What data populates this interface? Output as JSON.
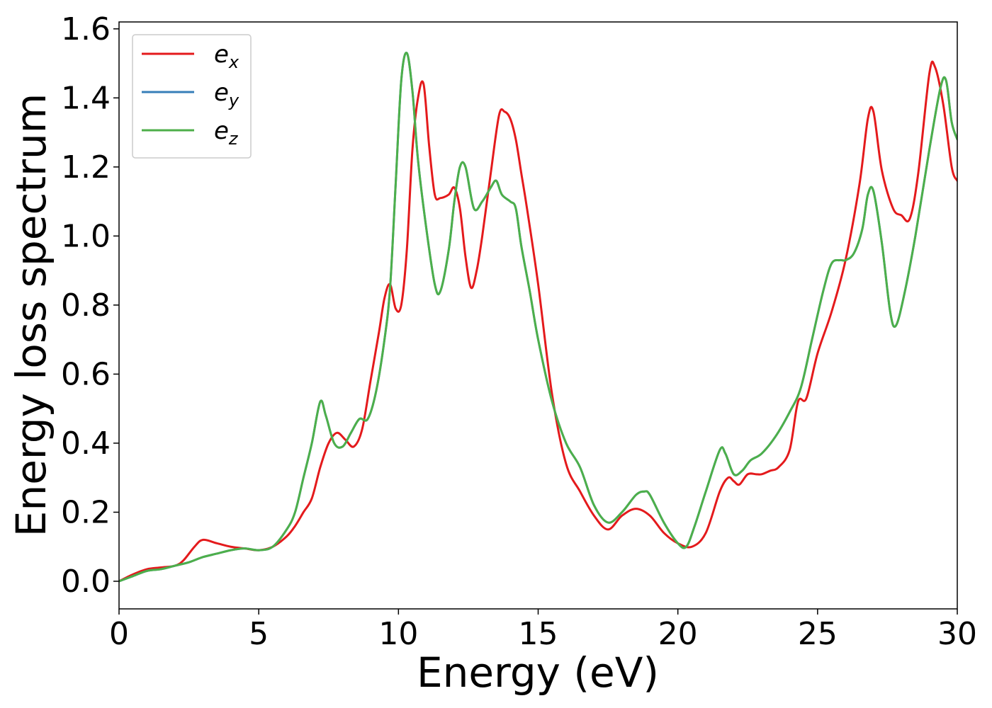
{
  "chart_data": {
    "type": "line",
    "xlabel": "Energy (eV)",
    "ylabel": "Energy loss spectrum",
    "xlim": [
      0,
      30
    ],
    "ylim": [
      -0.08,
      1.62
    ],
    "xticks": [
      0,
      5,
      10,
      15,
      20,
      25,
      30
    ],
    "xtick_labels": [
      "0",
      "5",
      "10",
      "15",
      "20",
      "25",
      "30"
    ],
    "yticks": [
      0.0,
      0.2,
      0.4,
      0.6,
      0.8,
      1.0,
      1.2,
      1.4,
      1.6
    ],
    "ytick_labels": [
      "0.0",
      "0.2",
      "0.4",
      "0.6",
      "0.8",
      "1.0",
      "1.2",
      "1.4",
      "1.6"
    ],
    "grid": false,
    "legend_position": "top-left",
    "series": [
      {
        "name": "e_x",
        "label_base": "e",
        "label_sub": "x",
        "color": "#e41a1c",
        "x": [
          0,
          0.5,
          1,
          1.5,
          2,
          2.3,
          2.7,
          3,
          3.5,
          4,
          4.5,
          5,
          5.5,
          6,
          6.3,
          6.6,
          6.9,
          7.2,
          7.5,
          7.8,
          8.1,
          8.4,
          8.7,
          9,
          9.3,
          9.5,
          9.7,
          9.9,
          10.1,
          10.3,
          10.5,
          10.7,
          10.9,
          11.1,
          11.3,
          11.5,
          11.8,
          12,
          12.2,
          12.4,
          12.6,
          12.8,
          13,
          13.3,
          13.6,
          13.8,
          14,
          14.2,
          14.4,
          14.6,
          15,
          15.5,
          16,
          16.5,
          17,
          17.5,
          18,
          18.5,
          19,
          19.5,
          20,
          20.5,
          21,
          21.5,
          21.8,
          22,
          22.2,
          22.5,
          22.8,
          23,
          23.3,
          23.6,
          24,
          24.3,
          24.6,
          25,
          25.5,
          26,
          26.5,
          26.8,
          27,
          27.3,
          27.7,
          28,
          28.3,
          28.6,
          29,
          29.2,
          29.5,
          29.8,
          30
        ],
        "y": [
          0,
          0.02,
          0.035,
          0.04,
          0.045,
          0.06,
          0.1,
          0.12,
          0.11,
          0.1,
          0.095,
          0.09,
          0.1,
          0.13,
          0.16,
          0.2,
          0.24,
          0.33,
          0.4,
          0.43,
          0.41,
          0.39,
          0.44,
          0.58,
          0.72,
          0.82,
          0.86,
          0.79,
          0.8,
          0.96,
          1.25,
          1.4,
          1.44,
          1.26,
          1.12,
          1.11,
          1.12,
          1.14,
          1.08,
          0.94,
          0.85,
          0.9,
          1.0,
          1.18,
          1.35,
          1.36,
          1.34,
          1.28,
          1.18,
          1.08,
          0.86,
          0.54,
          0.34,
          0.26,
          0.19,
          0.15,
          0.19,
          0.21,
          0.19,
          0.14,
          0.11,
          0.1,
          0.14,
          0.26,
          0.3,
          0.29,
          0.28,
          0.31,
          0.31,
          0.31,
          0.32,
          0.33,
          0.38,
          0.52,
          0.53,
          0.66,
          0.78,
          0.93,
          1.15,
          1.34,
          1.36,
          1.19,
          1.08,
          1.06,
          1.05,
          1.18,
          1.47,
          1.49,
          1.38,
          1.2,
          1.16
        ]
      },
      {
        "name": "e_y",
        "label_base": "e",
        "label_sub": "y",
        "color": "#377eb8",
        "x": [
          0,
          0.5,
          1,
          1.5,
          2,
          2.5,
          3,
          3.5,
          4,
          4.5,
          5,
          5.5,
          6,
          6.3,
          6.6,
          6.9,
          7.2,
          7.4,
          7.7,
          8,
          8.3,
          8.6,
          8.9,
          9.2,
          9.5,
          9.7,
          9.9,
          10.1,
          10.3,
          10.5,
          10.7,
          11,
          11.3,
          11.5,
          11.8,
          12,
          12.2,
          12.4,
          12.7,
          13,
          13.3,
          13.5,
          13.7,
          14,
          14.2,
          14.4,
          14.7,
          15,
          15.5,
          16,
          16.5,
          17,
          17.5,
          18,
          18.5,
          18.8,
          19,
          19.5,
          20,
          20.3,
          20.6,
          21,
          21.5,
          21.7,
          22,
          22.3,
          22.6,
          23,
          23.5,
          24,
          24.4,
          24.8,
          25.2,
          25.5,
          25.8,
          26,
          26.3,
          26.6,
          26.8,
          27,
          27.3,
          27.6,
          27.8,
          28.1,
          28.5,
          29,
          29.4,
          29.6,
          29.8,
          30
        ],
        "y": [
          0,
          0.015,
          0.03,
          0.035,
          0.045,
          0.055,
          0.07,
          0.08,
          0.09,
          0.095,
          0.09,
          0.1,
          0.15,
          0.2,
          0.3,
          0.4,
          0.52,
          0.48,
          0.4,
          0.39,
          0.43,
          0.47,
          0.47,
          0.55,
          0.7,
          0.85,
          1.15,
          1.45,
          1.53,
          1.42,
          1.22,
          1.02,
          0.86,
          0.84,
          0.96,
          1.1,
          1.2,
          1.2,
          1.08,
          1.1,
          1.14,
          1.16,
          1.12,
          1.1,
          1.08,
          0.97,
          0.84,
          0.7,
          0.52,
          0.4,
          0.33,
          0.22,
          0.17,
          0.2,
          0.25,
          0.26,
          0.25,
          0.17,
          0.11,
          0.1,
          0.16,
          0.26,
          0.38,
          0.37,
          0.31,
          0.32,
          0.35,
          0.37,
          0.42,
          0.49,
          0.56,
          0.7,
          0.84,
          0.92,
          0.93,
          0.93,
          0.95,
          1.02,
          1.12,
          1.13,
          0.98,
          0.78,
          0.74,
          0.83,
          1.0,
          1.25,
          1.43,
          1.45,
          1.33,
          1.28
        ]
      },
      {
        "name": "e_z",
        "label_base": "e",
        "label_sub": "z",
        "color": "#4daf4a",
        "x": [
          0,
          0.5,
          1,
          1.5,
          2,
          2.5,
          3,
          3.5,
          4,
          4.5,
          5,
          5.5,
          6,
          6.3,
          6.6,
          6.9,
          7.2,
          7.4,
          7.7,
          8,
          8.3,
          8.6,
          8.9,
          9.2,
          9.5,
          9.7,
          9.9,
          10.1,
          10.3,
          10.5,
          10.7,
          11,
          11.3,
          11.5,
          11.8,
          12,
          12.2,
          12.4,
          12.7,
          13,
          13.3,
          13.5,
          13.7,
          14,
          14.2,
          14.4,
          14.7,
          15,
          15.5,
          16,
          16.5,
          17,
          17.5,
          18,
          18.5,
          18.8,
          19,
          19.5,
          20,
          20.3,
          20.6,
          21,
          21.5,
          21.7,
          22,
          22.3,
          22.6,
          23,
          23.5,
          24,
          24.4,
          24.8,
          25.2,
          25.5,
          25.8,
          26,
          26.3,
          26.6,
          26.8,
          27,
          27.3,
          27.6,
          27.8,
          28.1,
          28.5,
          29,
          29.4,
          29.6,
          29.8,
          30
        ],
        "y": [
          0,
          0.015,
          0.03,
          0.035,
          0.045,
          0.055,
          0.07,
          0.08,
          0.09,
          0.095,
          0.09,
          0.1,
          0.15,
          0.2,
          0.3,
          0.4,
          0.52,
          0.48,
          0.4,
          0.39,
          0.43,
          0.47,
          0.47,
          0.55,
          0.7,
          0.85,
          1.15,
          1.45,
          1.53,
          1.42,
          1.22,
          1.02,
          0.86,
          0.84,
          0.96,
          1.1,
          1.2,
          1.2,
          1.08,
          1.1,
          1.14,
          1.16,
          1.12,
          1.1,
          1.08,
          0.97,
          0.84,
          0.7,
          0.52,
          0.4,
          0.33,
          0.22,
          0.17,
          0.2,
          0.25,
          0.26,
          0.25,
          0.17,
          0.11,
          0.1,
          0.16,
          0.26,
          0.38,
          0.37,
          0.31,
          0.32,
          0.35,
          0.37,
          0.42,
          0.49,
          0.56,
          0.7,
          0.84,
          0.92,
          0.93,
          0.93,
          0.95,
          1.02,
          1.12,
          1.13,
          0.98,
          0.78,
          0.74,
          0.83,
          1.0,
          1.25,
          1.43,
          1.45,
          1.33,
          1.28
        ]
      }
    ]
  }
}
